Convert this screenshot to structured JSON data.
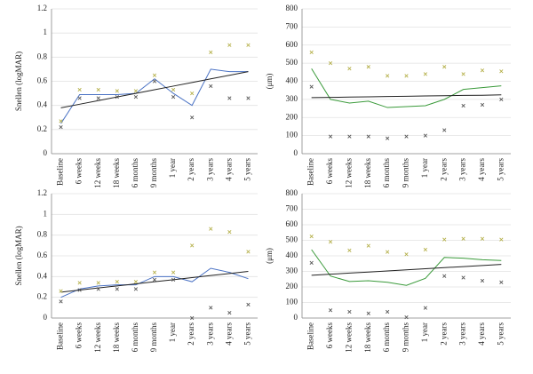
{
  "chart_data": [
    {
      "type": "line",
      "ylabel": "Snellen (logMAR)",
      "categories": [
        "Baseline",
        "6 weeks",
        "12 weeks",
        "18 weeks",
        "6 months",
        "9 months",
        "1 year",
        "2 years",
        "3 years",
        "4 years",
        "5 years"
      ],
      "ylim": [
        0,
        1.2
      ],
      "yticks": [
        0,
        0.2,
        0.4,
        0.6,
        0.8,
        1,
        1.2
      ],
      "grid": true,
      "series": [
        {
          "style": "line",
          "color": "#4a72c4",
          "values": [
            0.25,
            0.49,
            0.49,
            0.49,
            0.5,
            0.62,
            0.5,
            0.4,
            0.7,
            0.68,
            0.68
          ]
        },
        {
          "style": "line",
          "color": "#222222",
          "values": [
            0.38,
            0.41,
            0.44,
            0.47,
            0.5,
            0.53,
            0.56,
            0.59,
            0.62,
            0.65,
            0.68
          ]
        },
        {
          "style": "markers",
          "color": "#b5b04a",
          "values": [
            0.27,
            0.53,
            0.53,
            0.52,
            0.52,
            0.65,
            0.53,
            0.5,
            0.84,
            0.9,
            0.9
          ]
        },
        {
          "style": "markers",
          "color": "#555555",
          "values": [
            0.22,
            0.46,
            0.46,
            0.47,
            0.47,
            0.6,
            0.47,
            0.3,
            0.56,
            0.46,
            0.46
          ]
        }
      ]
    },
    {
      "type": "line",
      "ylabel": "(μm)",
      "categories": [
        "Baseline",
        "6 weeks",
        "12 weeks",
        "18 weeks",
        "6 months",
        "9 months",
        "1 year",
        "2 years",
        "3 years",
        "4 years",
        "5 years"
      ],
      "ylim": [
        0,
        800
      ],
      "yticks": [
        0,
        100,
        200,
        300,
        400,
        500,
        600,
        700,
        800
      ],
      "grid": true,
      "series": [
        {
          "style": "line",
          "color": "#3a9a3a",
          "values": [
            470,
            300,
            280,
            290,
            255,
            260,
            265,
            300,
            355,
            365,
            375
          ]
        },
        {
          "style": "line",
          "color": "#222222",
          "values": [
            310,
            311,
            313,
            314,
            316,
            317,
            319,
            320,
            322,
            323,
            325
          ]
        },
        {
          "style": "markers",
          "color": "#b5b04a",
          "values": [
            560,
            500,
            470,
            480,
            430,
            430,
            440,
            480,
            440,
            460,
            455
          ]
        },
        {
          "style": "markers",
          "color": "#555555",
          "values": [
            370,
            95,
            95,
            95,
            85,
            95,
            100,
            130,
            265,
            270,
            300
          ]
        }
      ]
    },
    {
      "type": "line",
      "ylabel": "Snellen (logMAR)",
      "categories": [
        "Baseline",
        "6 weeks",
        "12 weeks",
        "18 weeks",
        "6 months",
        "9 months",
        "1 year",
        "2 years",
        "3 years",
        "4 years",
        "5 years"
      ],
      "ylim": [
        0,
        1.2
      ],
      "yticks": [
        0,
        0.2,
        0.4,
        0.6,
        0.8,
        1,
        1.2
      ],
      "grid": true,
      "series": [
        {
          "style": "line",
          "color": "#4a72c4",
          "values": [
            0.2,
            0.28,
            0.31,
            0.32,
            0.32,
            0.4,
            0.4,
            0.35,
            0.48,
            0.44,
            0.38
          ]
        },
        {
          "style": "line",
          "color": "#222222",
          "values": [
            0.25,
            0.27,
            0.29,
            0.31,
            0.33,
            0.35,
            0.37,
            0.39,
            0.41,
            0.43,
            0.45
          ]
        },
        {
          "style": "markers",
          "color": "#b5b04a",
          "values": [
            0.26,
            0.34,
            0.34,
            0.35,
            0.35,
            0.44,
            0.44,
            0.7,
            0.86,
            0.83,
            0.64
          ]
        },
        {
          "style": "markers",
          "color": "#555555",
          "values": [
            0.16,
            0.27,
            0.28,
            0.28,
            0.28,
            0.37,
            0.37,
            0,
            0.1,
            0.05,
            0.13
          ]
        }
      ]
    },
    {
      "type": "line",
      "ylabel": "(μm)",
      "categories": [
        "Baseline",
        "6 weeks",
        "12 weeks",
        "18 weeks",
        "6 months",
        "9 months",
        "1 year",
        "2 years",
        "3 years",
        "4 years",
        "5 years"
      ],
      "ylim": [
        0,
        800
      ],
      "yticks": [
        0,
        100,
        200,
        300,
        400,
        500,
        600,
        700,
        800
      ],
      "grid": true,
      "series": [
        {
          "style": "line",
          "color": "#3a9a3a",
          "values": [
            440,
            270,
            235,
            240,
            230,
            210,
            255,
            390,
            385,
            375,
            370
          ]
        },
        {
          "style": "line",
          "color": "#222222",
          "values": [
            275,
            282,
            289,
            296,
            303,
            310,
            317,
            324,
            331,
            338,
            345
          ]
        },
        {
          "style": "markers",
          "color": "#b5b04a",
          "values": [
            525,
            490,
            435,
            465,
            425,
            410,
            440,
            505,
            510,
            510,
            505
          ]
        },
        {
          "style": "markers",
          "color": "#555555",
          "values": [
            355,
            50,
            40,
            30,
            40,
            5,
            65,
            270,
            260,
            240,
            230
          ]
        }
      ]
    }
  ]
}
